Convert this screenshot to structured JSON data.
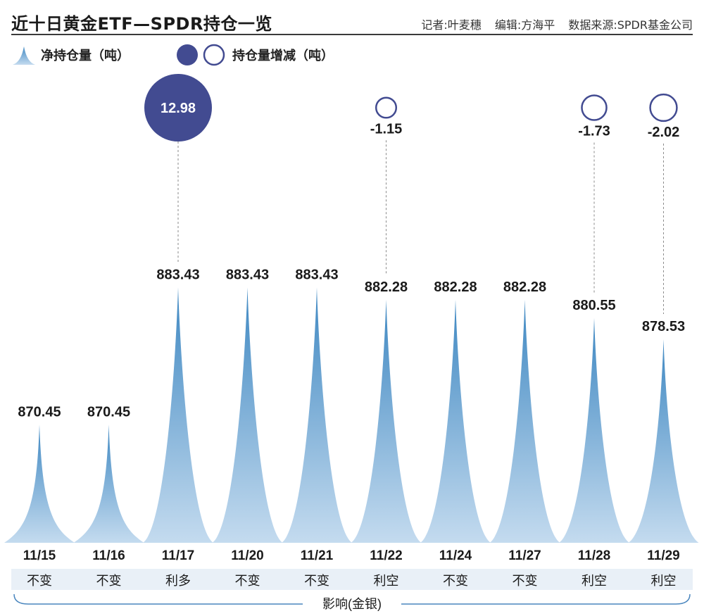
{
  "header": {
    "title": "近十日黄金ETF—SPDR持仓一览",
    "reporter": "记者:叶麦穗",
    "editor": "编辑:方海平",
    "source": "数据来源:SPDR基金公司"
  },
  "legend": {
    "holdings_label": "净持仓量（吨）",
    "change_label": "持仓量增减（吨）"
  },
  "colors": {
    "spike_top": "#3f88c2",
    "spike_bottom": "#c4dbef",
    "bubble_fill": "#424b91",
    "bubble_stroke": "#424b91",
    "impact_band": "#e9f0f7",
    "brace": "#4a86be"
  },
  "impact_label": "影响(金银)",
  "chart_data": {
    "type": "bar",
    "title": "近十日黄金ETF—SPDR持仓一览",
    "categories": [
      "11/15",
      "11/16",
      "11/17",
      "11/20",
      "11/21",
      "11/22",
      "11/24",
      "11/27",
      "11/28",
      "11/29"
    ],
    "series": [
      {
        "name": "净持仓量（吨）",
        "values": [
          870.45,
          870.45,
          883.43,
          883.43,
          883.43,
          882.28,
          882.28,
          882.28,
          880.55,
          878.53
        ],
        "labels": [
          "870.45",
          "870.45",
          "883.43",
          "883.43",
          "883.43",
          "882.28",
          "882.28",
          "882.28",
          "880.55",
          "878.53"
        ]
      },
      {
        "name": "持仓量增减（吨）",
        "values": [
          null,
          null,
          12.98,
          null,
          null,
          -1.15,
          null,
          null,
          -1.73,
          -2.02
        ],
        "labels": [
          "",
          "",
          "12.98",
          "",
          "",
          "-1.15",
          "",
          "",
          "-1.73",
          "-2.02"
        ]
      }
    ],
    "impact": [
      "不变",
      "不变",
      "利多",
      "不变",
      "不变",
      "利空",
      "不变",
      "不变",
      "利空",
      "利空"
    ],
    "ylim": [
      866,
      886
    ]
  }
}
